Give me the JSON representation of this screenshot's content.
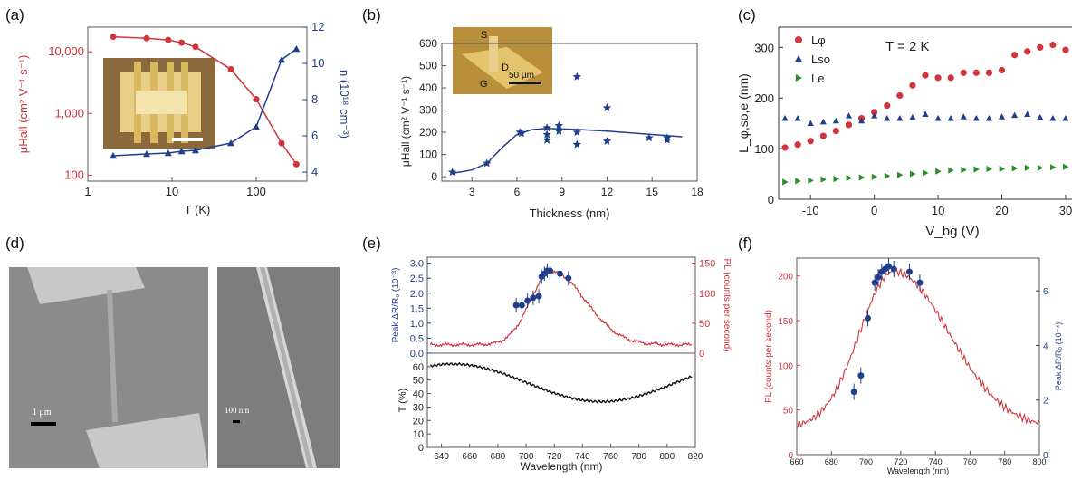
{
  "panel_labels": [
    "(a)",
    "(b)",
    "(c)",
    "(d)",
    "(e)",
    "(f)"
  ],
  "colors": {
    "red": "#d0343a",
    "blue": "#1f3f8a",
    "green": "#2e8b2e",
    "black": "#111111",
    "inset_gold": "#c9a44a"
  },
  "insets": {
    "b_labels": [
      "S",
      "D",
      "G"
    ],
    "b_scalebar": "50 μm"
  },
  "sem": {
    "scalebar_left": "1 μm",
    "scalebar_right": "100 nm"
  },
  "chart_data": [
    {
      "id": "a",
      "type": "line",
      "xlabel": "T (K)",
      "xscale": "log",
      "xlim": [
        1,
        400
      ],
      "xticks": [
        "1",
        "10",
        "100"
      ],
      "ylabel": "μHall (cm² V⁻¹ s⁻¹)",
      "yscale": "log",
      "ylim": [
        80,
        25000
      ],
      "yticks": [
        "100",
        "1,000",
        "10,000"
      ],
      "y2label": "n (10¹⁸ cm⁻³)",
      "y2lim": [
        3.5,
        12
      ],
      "y2ticks": [
        "4",
        "6",
        "8",
        "10",
        "12"
      ],
      "series": [
        {
          "axis": "left",
          "color": "#d0343a",
          "marker": "circle",
          "x": [
            2,
            5,
            9,
            13,
            19,
            50,
            100,
            200,
            300
          ],
          "y": [
            17500,
            16500,
            15500,
            14000,
            12000,
            5200,
            1700,
            330,
            150
          ]
        },
        {
          "axis": "right",
          "color": "#1f3f8a",
          "marker": "triangle",
          "x": [
            2,
            5,
            9,
            13,
            19,
            50,
            100,
            200,
            300
          ],
          "y": [
            4.9,
            5.0,
            5.05,
            5.15,
            5.2,
            5.6,
            6.5,
            10.2,
            10.8
          ]
        }
      ]
    },
    {
      "id": "b",
      "type": "scatter",
      "xlabel": "Thickness (nm)",
      "xlim": [
        1,
        18
      ],
      "xticks": [
        "3",
        "6",
        "9",
        "12",
        "15",
        "18"
      ],
      "ylabel": "μHall (cm² V⁻¹ s⁻¹)",
      "ylim": [
        -20,
        600
      ],
      "yticks": [
        "0",
        "100",
        "200",
        "300",
        "400",
        "500",
        "600"
      ],
      "points": {
        "x": [
          1.7,
          4,
          6.2,
          6.3,
          8,
          8,
          8,
          8.8,
          8.8,
          10,
          10,
          10,
          12,
          12,
          14.8,
          16,
          16
        ],
        "y": [
          20,
          60,
          200,
          195,
          220,
          190,
          165,
          230,
          205,
          450,
          200,
          145,
          310,
          160,
          175,
          175,
          165
        ]
      },
      "fit": {
        "x": [
          1.7,
          3,
          4,
          5,
          6,
          7,
          8,
          10,
          12,
          14,
          16,
          17
        ],
        "y": [
          15,
          30,
          60,
          130,
          190,
          212,
          218,
          213,
          205,
          195,
          185,
          180
        ]
      }
    },
    {
      "id": "c",
      "type": "scatter",
      "annotation": "T = 2 K",
      "xlabel": "V_bg (V)",
      "xlim": [
        -15,
        31
      ],
      "xticks": [
        "-10",
        "0",
        "10",
        "20",
        "30"
      ],
      "ylabel": "L_φ,so,e (nm)",
      "ylim": [
        0,
        340
      ],
      "yticks": [
        "0",
        "100",
        "200",
        "300"
      ],
      "series": [
        {
          "name": "Lφ",
          "color": "#d0343a",
          "marker": "circle",
          "x": [
            -14,
            -12,
            -10,
            -8,
            -6,
            -4,
            -2,
            0,
            2,
            4,
            6,
            8,
            10,
            12,
            14,
            16,
            18,
            20,
            22,
            24,
            26,
            28,
            30
          ],
          "y": [
            102,
            108,
            115,
            125,
            135,
            147,
            160,
            172,
            185,
            205,
            225,
            245,
            240,
            240,
            250,
            250,
            250,
            255,
            285,
            292,
            300,
            305,
            295
          ]
        },
        {
          "name": "Lso",
          "color": "#1f3f8a",
          "marker": "triangle",
          "x": [
            -14,
            -12,
            -10,
            -8,
            -6,
            -4,
            -2,
            0,
            2,
            4,
            6,
            8,
            10,
            12,
            14,
            16,
            18,
            20,
            22,
            24,
            26,
            28,
            30
          ],
          "y": [
            160,
            160,
            150,
            153,
            155,
            165,
            155,
            165,
            160,
            160,
            162,
            168,
            160,
            160,
            163,
            160,
            160,
            163,
            166,
            168,
            162,
            160,
            160
          ]
        },
        {
          "name": "Le",
          "color": "#2e8b2e",
          "marker": "triangle-right",
          "x": [
            -14,
            -12,
            -10,
            -8,
            -6,
            -4,
            -2,
            0,
            2,
            4,
            6,
            8,
            10,
            12,
            14,
            16,
            18,
            20,
            22,
            24,
            26,
            28,
            30
          ],
          "y": [
            34,
            36,
            37,
            39,
            40,
            42,
            43,
            44,
            46,
            48,
            50,
            52,
            55,
            57,
            58,
            59,
            60,
            60,
            61,
            62,
            62,
            63,
            64
          ]
        }
      ]
    },
    {
      "id": "e",
      "type": "line",
      "xlabel": "Wavelength (nm)",
      "xlim": [
        630,
        820
      ],
      "xticks": [
        "640",
        "660",
        "680",
        "700",
        "720",
        "740",
        "760",
        "780",
        "800",
        "820"
      ],
      "top": {
        "ylabel": "Peak ΔR/R₀ (10⁻³)",
        "ylim": [
          0,
          3.2
        ],
        "yticks": [
          "0.0",
          "0.5",
          "1.0",
          "1.5",
          "2.0",
          "2.5",
          "3.0"
        ],
        "y2label": "PL (counts per second)",
        "y2lim": [
          0,
          160
        ],
        "y2ticks": [
          "0",
          "50",
          "100",
          "150"
        ],
        "points": {
          "x": [
            693,
            697,
            701,
            705,
            709,
            711,
            713,
            715,
            717,
            724,
            730
          ],
          "y": [
            1.6,
            1.6,
            1.75,
            1.85,
            1.9,
            2.55,
            2.65,
            2.75,
            2.75,
            2.65,
            2.5
          ]
        }
      },
      "bottom": {
        "ylabel": "T (%)",
        "ylim": [
          0,
          70
        ],
        "yticks": [
          "0",
          "10",
          "20",
          "30",
          "40",
          "50",
          "60"
        ]
      }
    },
    {
      "id": "f",
      "type": "line",
      "xlabel": "Wavelength (nm)",
      "xlim": [
        660,
        800
      ],
      "xticks": [
        "660",
        "680",
        "700",
        "720",
        "740",
        "760",
        "780",
        "800"
      ],
      "ylabel": "PL (counts per second)",
      "ylim": [
        0,
        220
      ],
      "yticks": [
        "0",
        "50",
        "100",
        "150",
        "200"
      ],
      "y2label": "Peak ΔR/R₀ (10⁻⁴)",
      "y2lim": [
        0,
        7.2
      ],
      "y2ticks": [
        "0",
        "2",
        "4",
        "6"
      ],
      "points": {
        "x": [
          693,
          697,
          701,
          705,
          707,
          709,
          711,
          713,
          716,
          725,
          731
        ],
        "y": [
          2.3,
          2.9,
          5.0,
          6.3,
          6.5,
          6.7,
          6.8,
          6.9,
          6.8,
          6.7,
          6.3
        ]
      }
    }
  ]
}
